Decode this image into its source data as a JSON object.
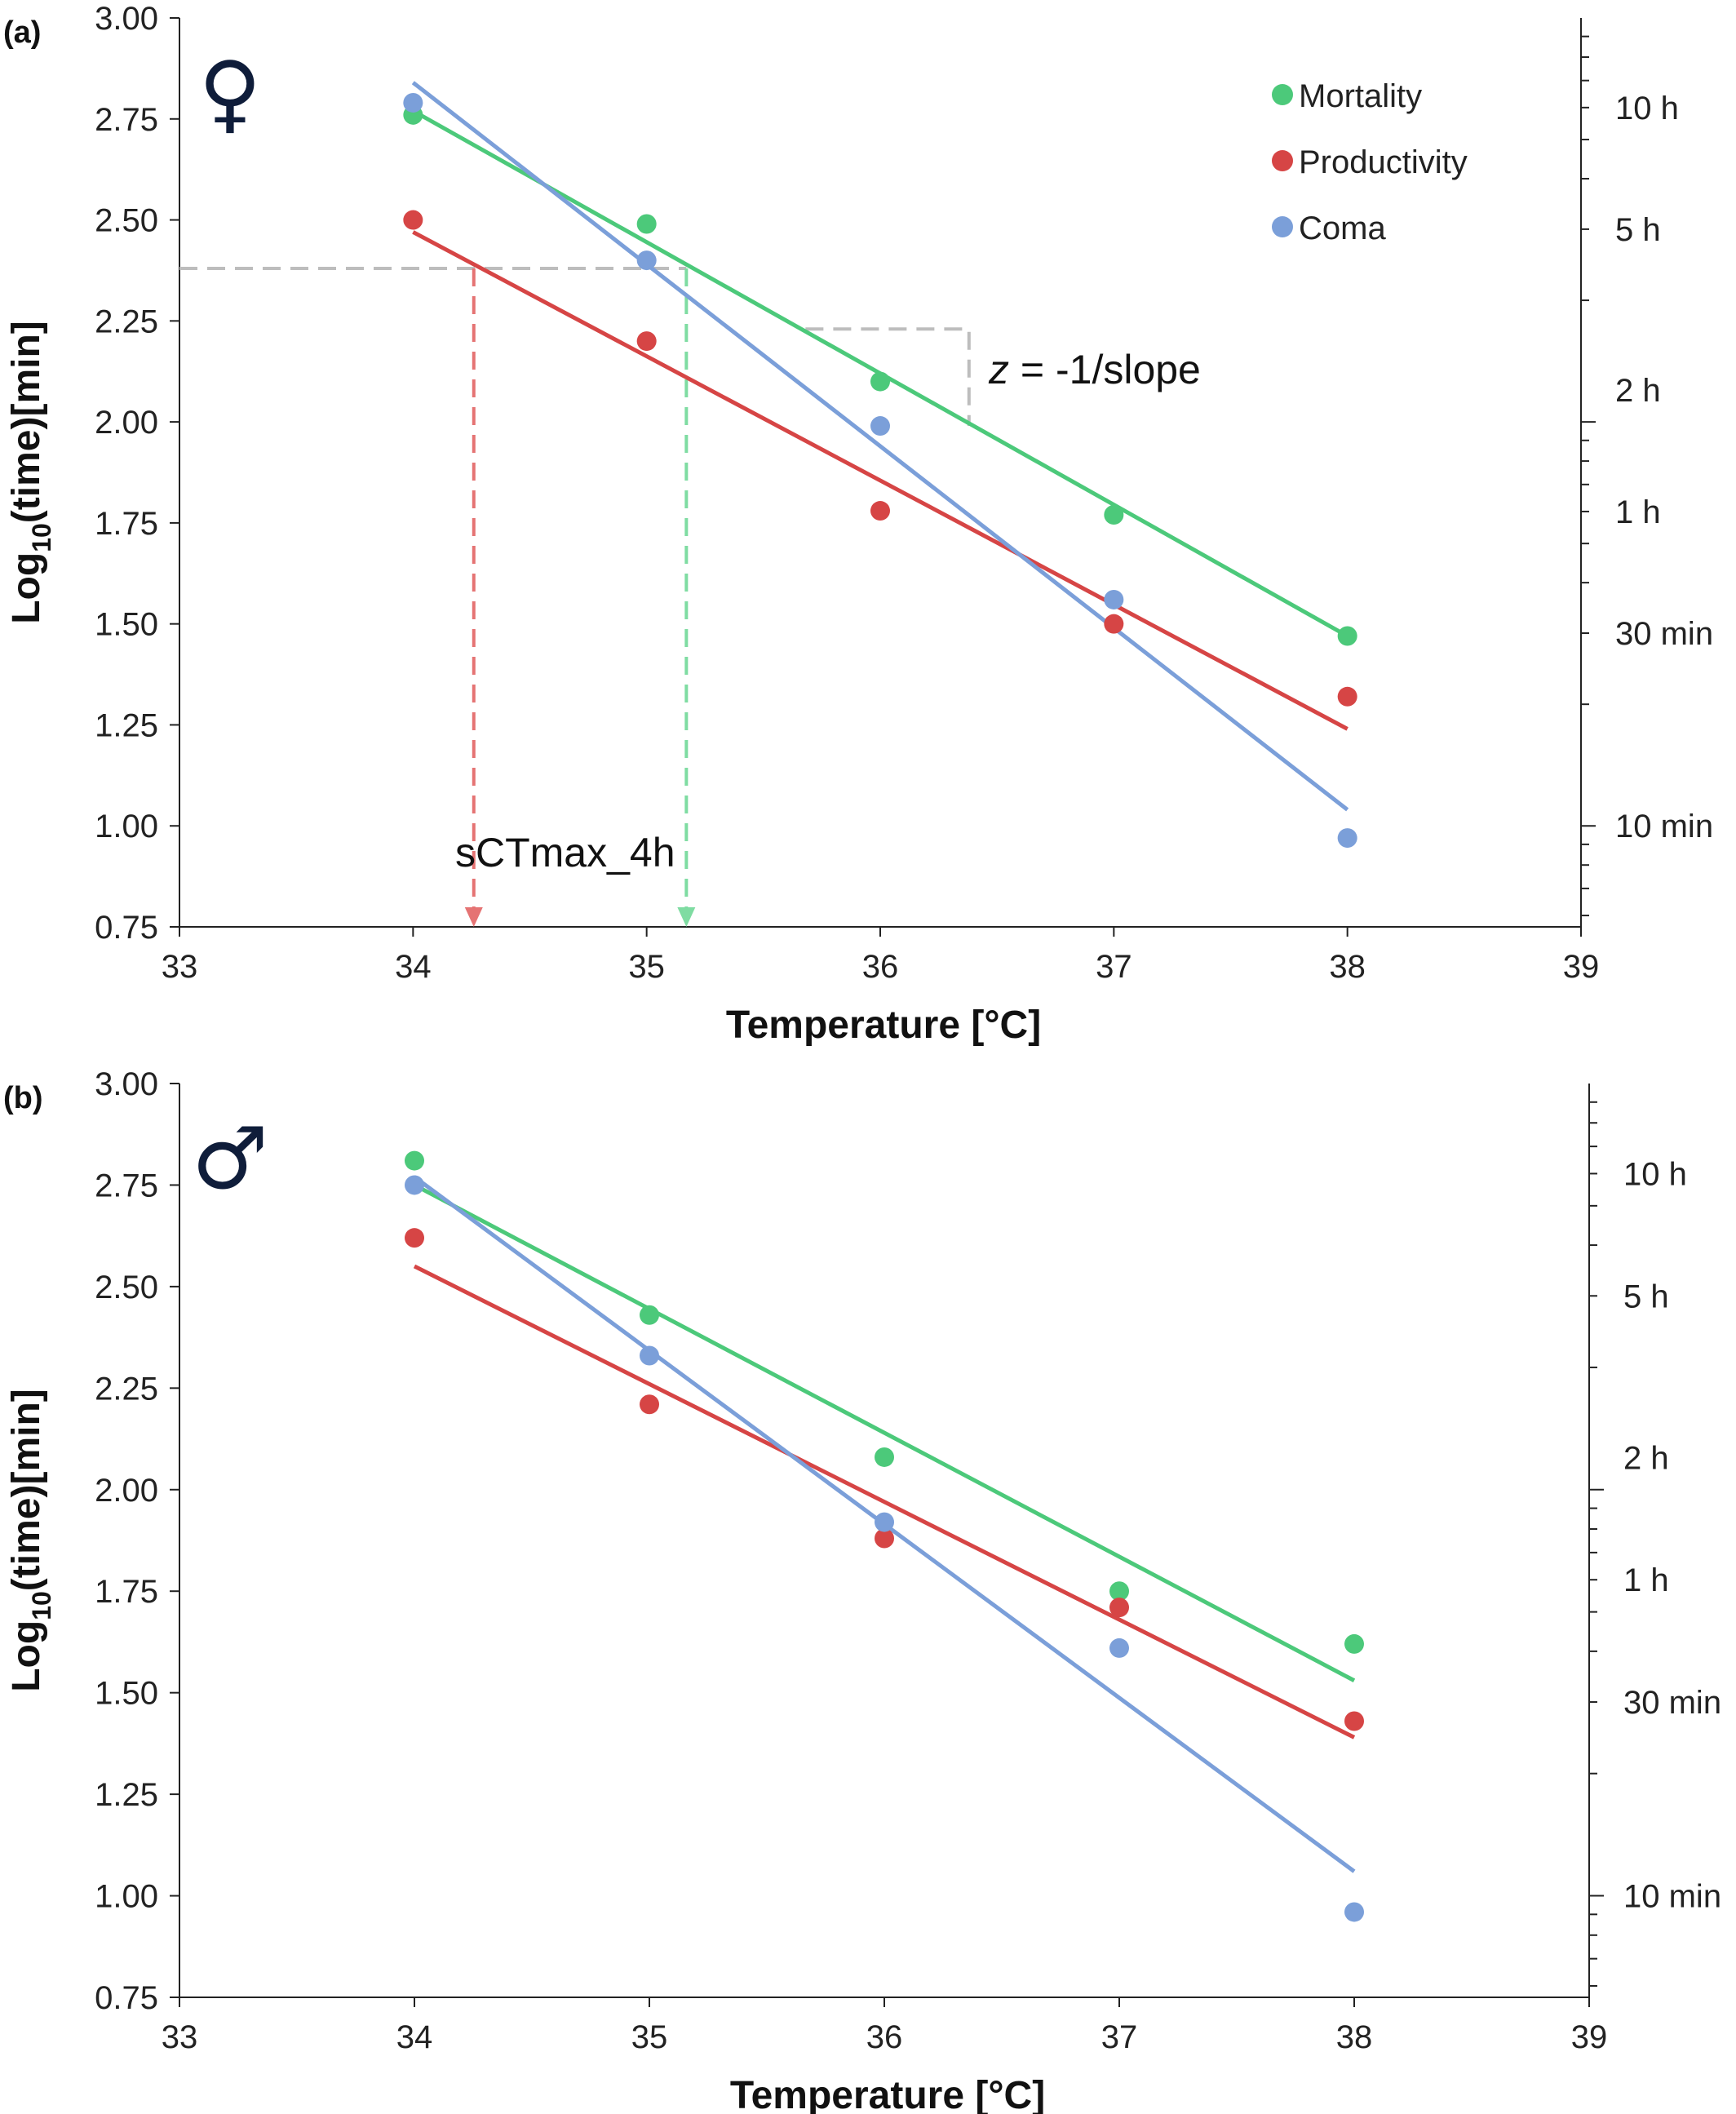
{
  "chart_data": [
    {
      "type": "scatter",
      "panel_label": "(a)",
      "sex_symbol": "♀",
      "xlabel": "Temperature [°C]",
      "ylabel_main": "Log",
      "ylabel_sub": "10",
      "ylabel_rest": "(time)[min]",
      "xlim": [
        33,
        39
      ],
      "ylim": [
        0.75,
        3.0
      ],
      "x_ticks": [
        "33",
        "34",
        "35",
        "36",
        "37",
        "38",
        "39"
      ],
      "y_ticks": [
        "0.75",
        "1.00",
        "1.25",
        "1.50",
        "1.75",
        "2.00",
        "2.25",
        "2.50",
        "2.75",
        "3.00"
      ],
      "right_axis": {
        "scale": "log10 minutes",
        "labels": [
          {
            "text": "10 h",
            "minutes": 600
          },
          {
            "text": "5 h",
            "minutes": 300
          },
          {
            "text": "2 h",
            "minutes": 120
          },
          {
            "text": "1 h",
            "minutes": 60
          },
          {
            "text": "30 min",
            "minutes": 30
          },
          {
            "text": "10 min",
            "minutes": 10
          }
        ]
      },
      "legend": {
        "position": "top-right",
        "entries": [
          "Mortality",
          "Productivity",
          "Coma"
        ]
      },
      "series": [
        {
          "name": "Mortality",
          "color": "#4cc97a",
          "x": [
            34,
            35,
            36,
            37,
            38
          ],
          "y": [
            2.76,
            2.49,
            2.1,
            1.77,
            1.47
          ],
          "fit": [
            [
              34,
              2.77
            ],
            [
              38,
              1.47
            ]
          ]
        },
        {
          "name": "Productivity",
          "color": "#d64545",
          "x": [
            34,
            35,
            36,
            37,
            38
          ],
          "y": [
            2.5,
            2.2,
            1.78,
            1.5,
            1.32
          ],
          "fit": [
            [
              34,
              2.47
            ],
            [
              38,
              1.24
            ]
          ]
        },
        {
          "name": "Coma",
          "color": "#7b9fd9",
          "x": [
            34,
            35,
            36,
            37,
            38
          ],
          "y": [
            2.79,
            2.4,
            1.99,
            1.56,
            0.97
          ],
          "fit": [
            [
              34,
              2.84
            ],
            [
              38,
              1.04
            ]
          ]
        }
      ],
      "annotations": {
        "z_text_italic": "z",
        "z_text_rest": " = -1/slope",
        "sctmax_text": "sCTmax_4h",
        "reference_log_time": 2.38,
        "productivity_sctmax": 34.26,
        "mortality_sctmax": 35.17,
        "slope_triangle": {
          "x1": 35.68,
          "x2": 36.38,
          "y_top": 2.23,
          "y_bottom": 1.99
        }
      }
    },
    {
      "type": "scatter",
      "panel_label": "(b)",
      "sex_symbol": "♂",
      "xlabel": "Temperature [°C]",
      "ylabel_main": "Log",
      "ylabel_sub": "10",
      "ylabel_rest": "(time)[min]",
      "xlim": [
        33,
        39
      ],
      "ylim": [
        0.75,
        3.0
      ],
      "x_ticks": [
        "33",
        "34",
        "35",
        "36",
        "37",
        "38",
        "39"
      ],
      "y_ticks": [
        "0.75",
        "1.00",
        "1.25",
        "1.50",
        "1.75",
        "2.00",
        "2.25",
        "2.50",
        "2.75",
        "3.00"
      ],
      "right_axis": {
        "scale": "log10 minutes",
        "labels": [
          {
            "text": "10 h",
            "minutes": 600
          },
          {
            "text": "5 h",
            "minutes": 300
          },
          {
            "text": "2 h",
            "minutes": 120
          },
          {
            "text": "1 h",
            "minutes": 60
          },
          {
            "text": "30 min",
            "minutes": 30
          },
          {
            "text": "10 min",
            "minutes": 10
          }
        ]
      },
      "series": [
        {
          "name": "Mortality",
          "color": "#4cc97a",
          "x": [
            34,
            35,
            36,
            37,
            38
          ],
          "y": [
            2.81,
            2.43,
            2.08,
            1.75,
            1.62
          ],
          "fit": [
            [
              34,
              2.75
            ],
            [
              38,
              1.53
            ]
          ]
        },
        {
          "name": "Productivity",
          "color": "#d64545",
          "x": [
            34,
            35,
            36,
            37,
            38
          ],
          "y": [
            2.62,
            2.21,
            1.88,
            1.71,
            1.43
          ],
          "fit": [
            [
              34,
              2.55
            ],
            [
              38,
              1.39
            ]
          ]
        },
        {
          "name": "Coma",
          "color": "#7b9fd9",
          "x": [
            34,
            35,
            36,
            37,
            38
          ],
          "y": [
            2.75,
            2.33,
            1.92,
            1.61,
            0.96
          ],
          "fit": [
            [
              34,
              2.77
            ],
            [
              38,
              1.06
            ]
          ]
        }
      ]
    }
  ]
}
